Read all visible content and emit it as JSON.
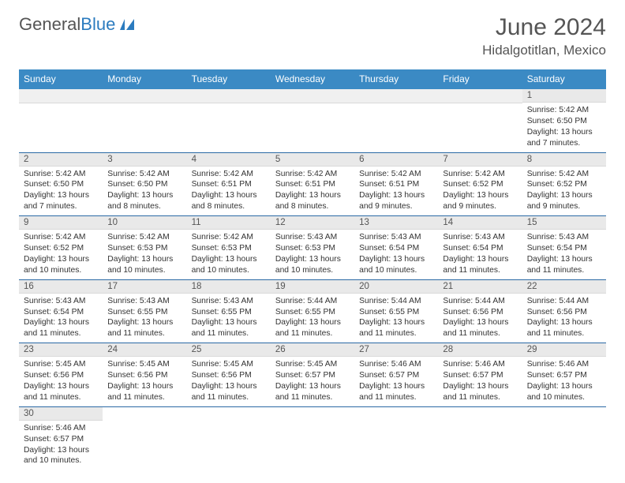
{
  "logo": {
    "text1": "General",
    "text2": "Blue"
  },
  "title": "June 2024",
  "location": "Hidalgotitlan, Mexico",
  "colors": {
    "header_bg": "#3b8ac4",
    "header_text": "#ffffff",
    "daynum_bg": "#e9e9e9",
    "row_border": "#2b6aa5",
    "logo_blue": "#2b7bbf",
    "title_color": "#555555"
  },
  "dayNames": [
    "Sunday",
    "Monday",
    "Tuesday",
    "Wednesday",
    "Thursday",
    "Friday",
    "Saturday"
  ],
  "weeks": [
    [
      null,
      null,
      null,
      null,
      null,
      null,
      {
        "n": "1",
        "sr": "5:42 AM",
        "ss": "6:50 PM",
        "dl": "13 hours and 7 minutes."
      }
    ],
    [
      {
        "n": "2",
        "sr": "5:42 AM",
        "ss": "6:50 PM",
        "dl": "13 hours and 7 minutes."
      },
      {
        "n": "3",
        "sr": "5:42 AM",
        "ss": "6:50 PM",
        "dl": "13 hours and 8 minutes."
      },
      {
        "n": "4",
        "sr": "5:42 AM",
        "ss": "6:51 PM",
        "dl": "13 hours and 8 minutes."
      },
      {
        "n": "5",
        "sr": "5:42 AM",
        "ss": "6:51 PM",
        "dl": "13 hours and 8 minutes."
      },
      {
        "n": "6",
        "sr": "5:42 AM",
        "ss": "6:51 PM",
        "dl": "13 hours and 9 minutes."
      },
      {
        "n": "7",
        "sr": "5:42 AM",
        "ss": "6:52 PM",
        "dl": "13 hours and 9 minutes."
      },
      {
        "n": "8",
        "sr": "5:42 AM",
        "ss": "6:52 PM",
        "dl": "13 hours and 9 minutes."
      }
    ],
    [
      {
        "n": "9",
        "sr": "5:42 AM",
        "ss": "6:52 PM",
        "dl": "13 hours and 10 minutes."
      },
      {
        "n": "10",
        "sr": "5:42 AM",
        "ss": "6:53 PM",
        "dl": "13 hours and 10 minutes."
      },
      {
        "n": "11",
        "sr": "5:42 AM",
        "ss": "6:53 PM",
        "dl": "13 hours and 10 minutes."
      },
      {
        "n": "12",
        "sr": "5:43 AM",
        "ss": "6:53 PM",
        "dl": "13 hours and 10 minutes."
      },
      {
        "n": "13",
        "sr": "5:43 AM",
        "ss": "6:54 PM",
        "dl": "13 hours and 10 minutes."
      },
      {
        "n": "14",
        "sr": "5:43 AM",
        "ss": "6:54 PM",
        "dl": "13 hours and 11 minutes."
      },
      {
        "n": "15",
        "sr": "5:43 AM",
        "ss": "6:54 PM",
        "dl": "13 hours and 11 minutes."
      }
    ],
    [
      {
        "n": "16",
        "sr": "5:43 AM",
        "ss": "6:54 PM",
        "dl": "13 hours and 11 minutes."
      },
      {
        "n": "17",
        "sr": "5:43 AM",
        "ss": "6:55 PM",
        "dl": "13 hours and 11 minutes."
      },
      {
        "n": "18",
        "sr": "5:43 AM",
        "ss": "6:55 PM",
        "dl": "13 hours and 11 minutes."
      },
      {
        "n": "19",
        "sr": "5:44 AM",
        "ss": "6:55 PM",
        "dl": "13 hours and 11 minutes."
      },
      {
        "n": "20",
        "sr": "5:44 AM",
        "ss": "6:55 PM",
        "dl": "13 hours and 11 minutes."
      },
      {
        "n": "21",
        "sr": "5:44 AM",
        "ss": "6:56 PM",
        "dl": "13 hours and 11 minutes."
      },
      {
        "n": "22",
        "sr": "5:44 AM",
        "ss": "6:56 PM",
        "dl": "13 hours and 11 minutes."
      }
    ],
    [
      {
        "n": "23",
        "sr": "5:45 AM",
        "ss": "6:56 PM",
        "dl": "13 hours and 11 minutes."
      },
      {
        "n": "24",
        "sr": "5:45 AM",
        "ss": "6:56 PM",
        "dl": "13 hours and 11 minutes."
      },
      {
        "n": "25",
        "sr": "5:45 AM",
        "ss": "6:56 PM",
        "dl": "13 hours and 11 minutes."
      },
      {
        "n": "26",
        "sr": "5:45 AM",
        "ss": "6:57 PM",
        "dl": "13 hours and 11 minutes."
      },
      {
        "n": "27",
        "sr": "5:46 AM",
        "ss": "6:57 PM",
        "dl": "13 hours and 11 minutes."
      },
      {
        "n": "28",
        "sr": "5:46 AM",
        "ss": "6:57 PM",
        "dl": "13 hours and 11 minutes."
      },
      {
        "n": "29",
        "sr": "5:46 AM",
        "ss": "6:57 PM",
        "dl": "13 hours and 10 minutes."
      }
    ],
    [
      {
        "n": "30",
        "sr": "5:46 AM",
        "ss": "6:57 PM",
        "dl": "13 hours and 10 minutes."
      },
      null,
      null,
      null,
      null,
      null,
      null
    ]
  ],
  "labels": {
    "sunrise": "Sunrise: ",
    "sunset": "Sunset: ",
    "daylight": "Daylight: "
  }
}
